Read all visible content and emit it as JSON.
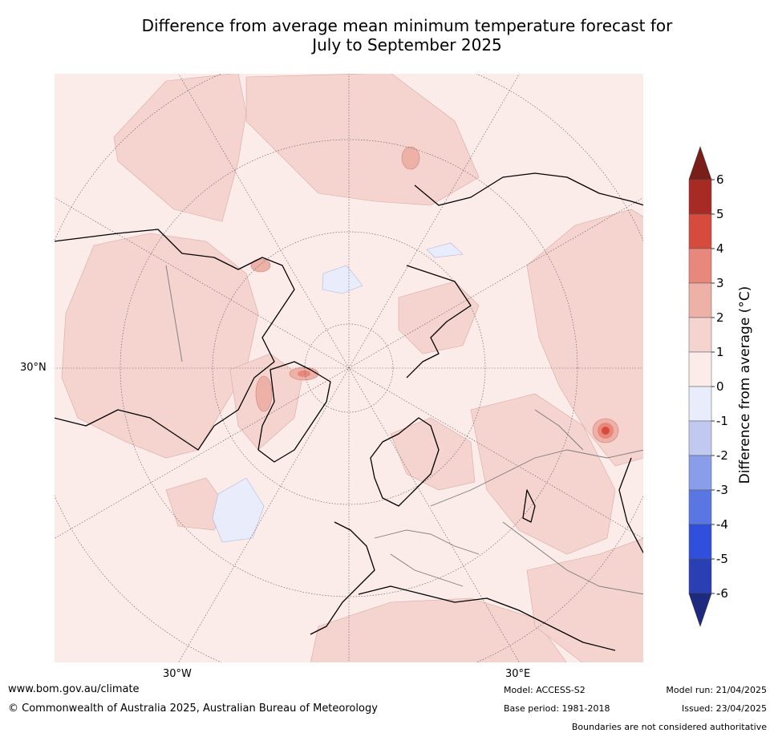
{
  "title_line1": "Difference from average mean minimum temperature forecast for",
  "title_line2": "July to September 2025",
  "map": {
    "lat_label": "30°N",
    "lon_labels": [
      "30°W",
      "30°E"
    ]
  },
  "colorbar": {
    "label": "Difference from average (°C)",
    "ticks": [
      "6",
      "5",
      "4",
      "3",
      "2",
      "1",
      "0",
      "-1",
      "-2",
      "-3",
      "-4",
      "-5",
      "-6"
    ],
    "colors": [
      "#a82a24",
      "#d64b3e",
      "#e8877c",
      "#eeb1a8",
      "#f5d4d0",
      "#fbecea",
      "#e8ecfb",
      "#c1c9f0",
      "#8a9dea",
      "#5a76e2",
      "#2f4fdc",
      "#2a3fb4"
    ],
    "top_arrow_color": "#7a1e1a",
    "bottom_arrow_color": "#1d2a80"
  },
  "footer": {
    "website": "www.bom.gov.au/climate",
    "copyright": "© Commonwealth of Australia 2025, Australian Bureau of Meteorology",
    "model": "Model: ACCESS-S2",
    "base_period": "Base period: 1981-2018",
    "model_run": "Model run: 21/04/2025",
    "issued": "Issued: 23/04/2025",
    "disclaimer": "Boundaries are not considered authoritative"
  }
}
